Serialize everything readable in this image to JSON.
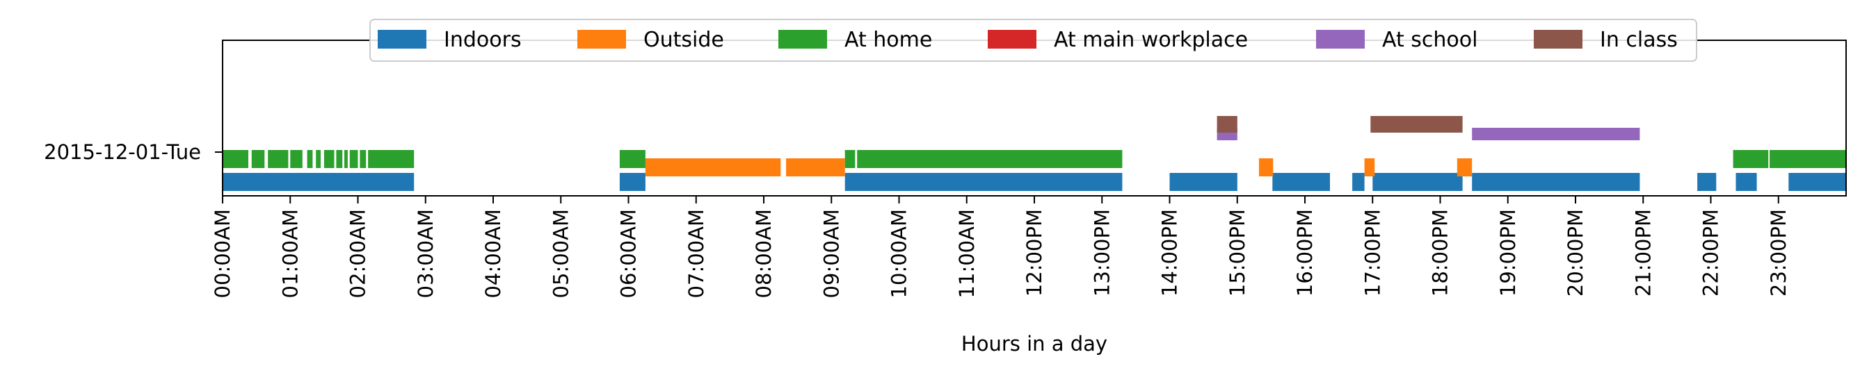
{
  "chart_data": {
    "type": "timeline",
    "xlabel": "Hours in a day",
    "xlim": [
      0,
      24
    ],
    "x_ticks": [
      {
        "value": 0,
        "label": "00:00AM"
      },
      {
        "value": 1,
        "label": "01:00AM"
      },
      {
        "value": 2,
        "label": "02:00AM"
      },
      {
        "value": 3,
        "label": "03:00AM"
      },
      {
        "value": 4,
        "label": "04:00AM"
      },
      {
        "value": 5,
        "label": "05:00AM"
      },
      {
        "value": 6,
        "label": "06:00AM"
      },
      {
        "value": 7,
        "label": "07:00AM"
      },
      {
        "value": 8,
        "label": "08:00AM"
      },
      {
        "value": 9,
        "label": "09:00AM"
      },
      {
        "value": 10,
        "label": "10:00AM"
      },
      {
        "value": 11,
        "label": "11:00AM"
      },
      {
        "value": 12,
        "label": "12:00PM"
      },
      {
        "value": 13,
        "label": "13:00PM"
      },
      {
        "value": 14,
        "label": "14:00PM"
      },
      {
        "value": 15,
        "label": "15:00PM"
      },
      {
        "value": 16,
        "label": "16:00PM"
      },
      {
        "value": 17,
        "label": "17:00PM"
      },
      {
        "value": 18,
        "label": "18:00PM"
      },
      {
        "value": 19,
        "label": "19:00PM"
      },
      {
        "value": 20,
        "label": "20:00PM"
      },
      {
        "value": 21,
        "label": "21:00PM"
      },
      {
        "value": 22,
        "label": "22:00PM"
      },
      {
        "value": 23,
        "label": "23:00PM"
      }
    ],
    "y_label": "2015-12-01-Tue",
    "legend_placement": "top-center",
    "series": [
      {
        "name": "Indoors",
        "color": "#1f77b4",
        "lane": 0,
        "intervals": [
          [
            0,
            2.83
          ],
          [
            5.87,
            6.25
          ],
          [
            9.2,
            13.3
          ],
          [
            14.0,
            15.0
          ],
          [
            15.52,
            16.37
          ],
          [
            16.7,
            16.88
          ],
          [
            17.0,
            18.33
          ],
          [
            18.47,
            20.95
          ],
          [
            21.8,
            22.08
          ],
          [
            22.37,
            22.68
          ],
          [
            23.15,
            24.0
          ]
        ]
      },
      {
        "name": "Outside",
        "color": "#ff7f0e",
        "lane": 1,
        "intervals": [
          [
            6.25,
            8.25
          ],
          [
            8.33,
            9.2
          ],
          [
            15.32,
            15.53
          ],
          [
            16.88,
            17.03
          ],
          [
            18.25,
            18.47
          ]
        ]
      },
      {
        "name": "At home",
        "color": "#2ca02c",
        "lane": 2,
        "intervals": [
          [
            0,
            0.38
          ],
          [
            0.43,
            0.62
          ],
          [
            0.67,
            0.97
          ],
          [
            1.0,
            1.18
          ],
          [
            1.25,
            1.33
          ],
          [
            1.38,
            1.45
          ],
          [
            1.5,
            1.65
          ],
          [
            1.68,
            1.77
          ],
          [
            1.8,
            1.85
          ],
          [
            1.88,
            2.0
          ],
          [
            2.03,
            2.12
          ],
          [
            2.15,
            2.83
          ],
          [
            5.87,
            6.25
          ],
          [
            9.2,
            9.35
          ],
          [
            9.38,
            13.3
          ],
          [
            22.33,
            22.85
          ],
          [
            22.87,
            24.0
          ]
        ]
      },
      {
        "name": "At main workplace",
        "color": "#d62728",
        "lane": 3,
        "intervals": []
      },
      {
        "name": "At school",
        "color": "#9467bd",
        "lane": 4,
        "intervals": [
          [
            14.7,
            15.0
          ],
          [
            18.47,
            20.95
          ]
        ]
      },
      {
        "name": "In class",
        "color": "#8c564b",
        "lane": 5,
        "intervals": [
          [
            14.7,
            15.0
          ],
          [
            16.97,
            18.33
          ]
        ]
      }
    ]
  }
}
